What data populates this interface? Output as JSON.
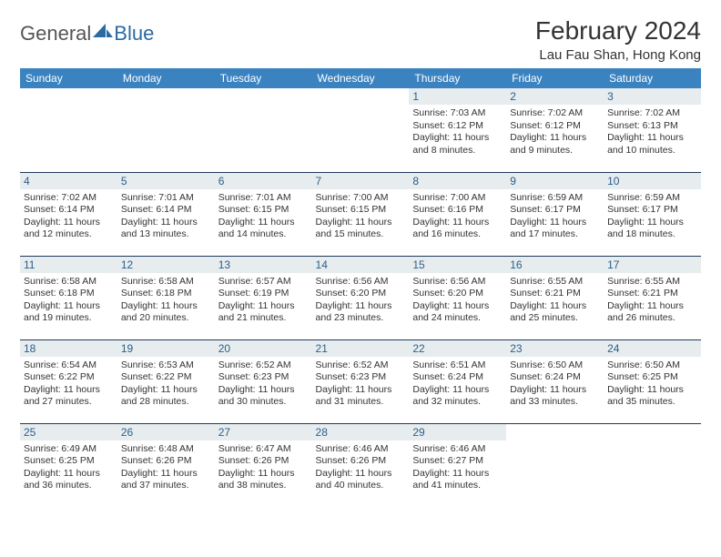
{
  "brand": {
    "part1": "General",
    "part2": "Blue"
  },
  "colors": {
    "header_bg": "#3b83c0",
    "header_text": "#ffffff",
    "daynum_bg": "#e7ecef",
    "daynum_text": "#2b5f8a",
    "row_border": "#1f3a5a",
    "text": "#333333",
    "brand_gray": "#555555",
    "brand_blue": "#2c6aa3"
  },
  "title": "February 2024",
  "location": "Lau Fau Shan, Hong Kong",
  "weekdays": [
    "Sunday",
    "Monday",
    "Tuesday",
    "Wednesday",
    "Thursday",
    "Friday",
    "Saturday"
  ],
  "weeks": [
    [
      {
        "day": "",
        "sunrise": "",
        "sunset": "",
        "daylight": ""
      },
      {
        "day": "",
        "sunrise": "",
        "sunset": "",
        "daylight": ""
      },
      {
        "day": "",
        "sunrise": "",
        "sunset": "",
        "daylight": ""
      },
      {
        "day": "",
        "sunrise": "",
        "sunset": "",
        "daylight": ""
      },
      {
        "day": "1",
        "sunrise": "Sunrise: 7:03 AM",
        "sunset": "Sunset: 6:12 PM",
        "daylight": "Daylight: 11 hours and 8 minutes."
      },
      {
        "day": "2",
        "sunrise": "Sunrise: 7:02 AM",
        "sunset": "Sunset: 6:12 PM",
        "daylight": "Daylight: 11 hours and 9 minutes."
      },
      {
        "day": "3",
        "sunrise": "Sunrise: 7:02 AM",
        "sunset": "Sunset: 6:13 PM",
        "daylight": "Daylight: 11 hours and 10 minutes."
      }
    ],
    [
      {
        "day": "4",
        "sunrise": "Sunrise: 7:02 AM",
        "sunset": "Sunset: 6:14 PM",
        "daylight": "Daylight: 11 hours and 12 minutes."
      },
      {
        "day": "5",
        "sunrise": "Sunrise: 7:01 AM",
        "sunset": "Sunset: 6:14 PM",
        "daylight": "Daylight: 11 hours and 13 minutes."
      },
      {
        "day": "6",
        "sunrise": "Sunrise: 7:01 AM",
        "sunset": "Sunset: 6:15 PM",
        "daylight": "Daylight: 11 hours and 14 minutes."
      },
      {
        "day": "7",
        "sunrise": "Sunrise: 7:00 AM",
        "sunset": "Sunset: 6:15 PM",
        "daylight": "Daylight: 11 hours and 15 minutes."
      },
      {
        "day": "8",
        "sunrise": "Sunrise: 7:00 AM",
        "sunset": "Sunset: 6:16 PM",
        "daylight": "Daylight: 11 hours and 16 minutes."
      },
      {
        "day": "9",
        "sunrise": "Sunrise: 6:59 AM",
        "sunset": "Sunset: 6:17 PM",
        "daylight": "Daylight: 11 hours and 17 minutes."
      },
      {
        "day": "10",
        "sunrise": "Sunrise: 6:59 AM",
        "sunset": "Sunset: 6:17 PM",
        "daylight": "Daylight: 11 hours and 18 minutes."
      }
    ],
    [
      {
        "day": "11",
        "sunrise": "Sunrise: 6:58 AM",
        "sunset": "Sunset: 6:18 PM",
        "daylight": "Daylight: 11 hours and 19 minutes."
      },
      {
        "day": "12",
        "sunrise": "Sunrise: 6:58 AM",
        "sunset": "Sunset: 6:18 PM",
        "daylight": "Daylight: 11 hours and 20 minutes."
      },
      {
        "day": "13",
        "sunrise": "Sunrise: 6:57 AM",
        "sunset": "Sunset: 6:19 PM",
        "daylight": "Daylight: 11 hours and 21 minutes."
      },
      {
        "day": "14",
        "sunrise": "Sunrise: 6:56 AM",
        "sunset": "Sunset: 6:20 PM",
        "daylight": "Daylight: 11 hours and 23 minutes."
      },
      {
        "day": "15",
        "sunrise": "Sunrise: 6:56 AM",
        "sunset": "Sunset: 6:20 PM",
        "daylight": "Daylight: 11 hours and 24 minutes."
      },
      {
        "day": "16",
        "sunrise": "Sunrise: 6:55 AM",
        "sunset": "Sunset: 6:21 PM",
        "daylight": "Daylight: 11 hours and 25 minutes."
      },
      {
        "day": "17",
        "sunrise": "Sunrise: 6:55 AM",
        "sunset": "Sunset: 6:21 PM",
        "daylight": "Daylight: 11 hours and 26 minutes."
      }
    ],
    [
      {
        "day": "18",
        "sunrise": "Sunrise: 6:54 AM",
        "sunset": "Sunset: 6:22 PM",
        "daylight": "Daylight: 11 hours and 27 minutes."
      },
      {
        "day": "19",
        "sunrise": "Sunrise: 6:53 AM",
        "sunset": "Sunset: 6:22 PM",
        "daylight": "Daylight: 11 hours and 28 minutes."
      },
      {
        "day": "20",
        "sunrise": "Sunrise: 6:52 AM",
        "sunset": "Sunset: 6:23 PM",
        "daylight": "Daylight: 11 hours and 30 minutes."
      },
      {
        "day": "21",
        "sunrise": "Sunrise: 6:52 AM",
        "sunset": "Sunset: 6:23 PM",
        "daylight": "Daylight: 11 hours and 31 minutes."
      },
      {
        "day": "22",
        "sunrise": "Sunrise: 6:51 AM",
        "sunset": "Sunset: 6:24 PM",
        "daylight": "Daylight: 11 hours and 32 minutes."
      },
      {
        "day": "23",
        "sunrise": "Sunrise: 6:50 AM",
        "sunset": "Sunset: 6:24 PM",
        "daylight": "Daylight: 11 hours and 33 minutes."
      },
      {
        "day": "24",
        "sunrise": "Sunrise: 6:50 AM",
        "sunset": "Sunset: 6:25 PM",
        "daylight": "Daylight: 11 hours and 35 minutes."
      }
    ],
    [
      {
        "day": "25",
        "sunrise": "Sunrise: 6:49 AM",
        "sunset": "Sunset: 6:25 PM",
        "daylight": "Daylight: 11 hours and 36 minutes."
      },
      {
        "day": "26",
        "sunrise": "Sunrise: 6:48 AM",
        "sunset": "Sunset: 6:26 PM",
        "daylight": "Daylight: 11 hours and 37 minutes."
      },
      {
        "day": "27",
        "sunrise": "Sunrise: 6:47 AM",
        "sunset": "Sunset: 6:26 PM",
        "daylight": "Daylight: 11 hours and 38 minutes."
      },
      {
        "day": "28",
        "sunrise": "Sunrise: 6:46 AM",
        "sunset": "Sunset: 6:26 PM",
        "daylight": "Daylight: 11 hours and 40 minutes."
      },
      {
        "day": "29",
        "sunrise": "Sunrise: 6:46 AM",
        "sunset": "Sunset: 6:27 PM",
        "daylight": "Daylight: 11 hours and 41 minutes."
      },
      {
        "day": "",
        "sunrise": "",
        "sunset": "",
        "daylight": ""
      },
      {
        "day": "",
        "sunrise": "",
        "sunset": "",
        "daylight": ""
      }
    ]
  ]
}
